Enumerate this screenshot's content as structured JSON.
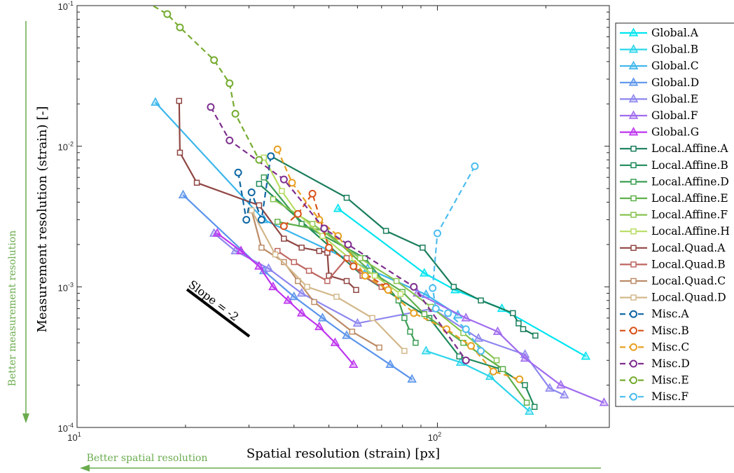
{
  "chart_data": {
    "type": "line",
    "title": "",
    "xlabel": "Spatial resolution (strain) [px]",
    "ylabel": "Measurement resolution (strain) [-]",
    "xscale": "log",
    "yscale": "log",
    "xlim": [
      10,
      300
    ],
    "ylim": [
      0.0001,
      0.1
    ],
    "x_ticks": [
      {
        "label_base": "10",
        "label_exp": "1"
      },
      {
        "label_base": "10",
        "label_exp": "2"
      }
    ],
    "y_ticks": [
      {
        "label_base": "10",
        "label_exp": "-4"
      },
      {
        "label_base": "10",
        "label_exp": "-3"
      },
      {
        "label_base": "10",
        "label_exp": "-2"
      },
      {
        "label_base": "10",
        "label_exp": "-1"
      }
    ],
    "grid": false,
    "legend_position": "right-outside",
    "annotations": {
      "slope_label": "Slope = -2",
      "better_measurement": "Better measurement resolution",
      "better_spatial": "Better spatial resolution"
    },
    "series": [
      {
        "name": "Global.A",
        "color": "#00e5f0",
        "marker": "triangle",
        "dash": false,
        "x": [
          53,
          92,
          112,
          151,
          258
        ],
        "y": [
          0.0036,
          0.00125,
          0.00095,
          0.0007,
          0.00032
        ]
      },
      {
        "name": "Global.B",
        "color": "#2bd5ea",
        "marker": "triangle",
        "dash": false,
        "x": [
          93,
          116,
          140,
          180
        ],
        "y": [
          0.00035,
          0.00029,
          0.00023,
          0.00013
        ]
      },
      {
        "name": "Global.C",
        "color": "#3ab5ec",
        "marker": "triangle",
        "dash": false,
        "x": [
          16.5,
          33,
          64,
          93,
          114
        ],
        "y": [
          0.0205,
          0.003,
          0.00135,
          0.00088,
          0.00063
        ]
      },
      {
        "name": "Global.D",
        "color": "#5b94eb",
        "marker": "triangle",
        "dash": false,
        "x": [
          19.7,
          33,
          40,
          48,
          56,
          74,
          85
        ],
        "y": [
          0.0045,
          0.0013,
          0.00085,
          0.0006,
          0.00045,
          0.00028,
          0.00022
        ]
      },
      {
        "name": "Global.E",
        "color": "#8d86ef",
        "marker": "triangle",
        "dash": false,
        "x": [
          24,
          27.5,
          34,
          42,
          60,
          97,
          130,
          175,
          205,
          225
        ],
        "y": [
          0.0024,
          0.0018,
          0.00135,
          0.0009,
          0.00055,
          0.0007,
          0.00043,
          0.00033,
          0.00019,
          0.00017
        ]
      },
      {
        "name": "Global.F",
        "color": "#a06bee",
        "marker": "triangle",
        "dash": false,
        "x": [
          88,
          120,
          147,
          175,
          220,
          290
        ],
        "y": [
          0.0009,
          0.0006,
          0.00048,
          0.00031,
          0.0002,
          0.00015
        ]
      },
      {
        "name": "Global.G",
        "color": "#bd35ee",
        "marker": "triangle",
        "dash": false,
        "x": [
          24.5,
          28.5,
          32,
          35,
          38.5,
          42,
          47,
          52,
          58.5
        ],
        "y": [
          0.0024,
          0.0018,
          0.0014,
          0.001,
          0.0008,
          0.00065,
          0.00052,
          0.0004,
          0.00028
        ]
      },
      {
        "name": "Local.Affine.A",
        "color": "#1a7e5a",
        "marker": "square",
        "dash": false,
        "x": [
          34.5,
          56,
          72,
          91,
          111,
          132,
          162,
          168,
          173,
          187
        ],
        "y": [
          0.0085,
          0.0043,
          0.0025,
          0.0019,
          0.001,
          0.0008,
          0.00065,
          0.00055,
          0.0005,
          0.00045
        ]
      },
      {
        "name": "Local.Affine.B",
        "color": "#1e8a5b",
        "marker": "square",
        "dash": false,
        "x": [
          32,
          62,
          95,
          115,
          150,
          175,
          186
        ],
        "y": [
          0.0054,
          0.0012,
          0.0006,
          0.00032,
          0.00026,
          0.0002,
          0.00014
        ]
      },
      {
        "name": "Local.Affine.D",
        "color": "#3c9e55",
        "marker": "square",
        "dash": false,
        "x": [
          33,
          42,
          63,
          78,
          81,
          84,
          87
        ],
        "y": [
          0.006,
          0.0028,
          0.0016,
          0.0008,
          0.0006,
          0.00048,
          0.0004
        ]
      },
      {
        "name": "Local.Affine.E",
        "color": "#5fb04c",
        "marker": "square",
        "dash": false,
        "x": [
          36,
          49,
          65,
          80,
          92,
          118,
          152,
          177
        ],
        "y": [
          0.0029,
          0.0025,
          0.0013,
          0.00092,
          0.00064,
          0.0004,
          0.00026,
          0.00015
        ]
      },
      {
        "name": "Local.Affine.F",
        "color": "#87c450",
        "marker": "square",
        "dash": false,
        "x": [
          35,
          45,
          61,
          77,
          96,
          118,
          146
        ],
        "y": [
          0.0042,
          0.0028,
          0.0016,
          0.0011,
          0.00072,
          0.00047,
          0.0003
        ]
      },
      {
        "name": "Local.Affine.H",
        "color": "#b8dc62",
        "marker": "square",
        "dash": false,
        "x": [
          33,
          37,
          41,
          48,
          57,
          67,
          79
        ],
        "y": [
          0.0083,
          0.0048,
          0.0033,
          0.0023,
          0.0016,
          0.0012,
          0.00089
        ]
      },
      {
        "name": "Local.Quad.A",
        "color": "#8f4643",
        "marker": "square",
        "dash": false,
        "x": [
          19.2,
          19.3,
          21.5,
          32,
          37.5,
          42,
          47,
          49.5,
          50,
          56,
          59.5
        ],
        "y": [
          0.021,
          0.009,
          0.0055,
          0.0038,
          0.0022,
          0.0019,
          0.0018,
          0.00175,
          0.0012,
          0.0011,
          0.00095
        ]
      },
      {
        "name": "Local.Quad.B",
        "color": "#bd6560",
        "marker": "square",
        "dash": false,
        "x": [
          36,
          40,
          44,
          49.5,
          56,
          62,
          70
        ],
        "y": [
          0.0018,
          0.0015,
          0.0013,
          0.0011,
          0.0016,
          0.0012,
          0.001
        ]
      },
      {
        "name": "Local.Quad.C",
        "color": "#bc8c68",
        "marker": "square",
        "dash": false,
        "x": [
          30.5,
          32.5,
          37.5,
          41,
          45.5,
          58,
          69
        ],
        "y": [
          0.0035,
          0.0019,
          0.0015,
          0.0011,
          0.00078,
          0.00048,
          0.00037
        ]
      },
      {
        "name": "Local.Quad.D",
        "color": "#d3b88b",
        "marker": "square",
        "dash": false,
        "x": [
          30.5,
          35.5,
          43.5,
          52.5,
          66,
          81
        ],
        "y": [
          0.0035,
          0.0017,
          0.001,
          0.00085,
          0.0006,
          0.00035
        ]
      },
      {
        "name": "Misc.A",
        "color": "#0e66a2",
        "marker": "circle",
        "dash": true,
        "x": [
          28,
          29.5,
          30.5,
          32.5,
          34.5
        ],
        "y": [
          0.0065,
          0.003,
          0.0047,
          0.003,
          0.0085
        ]
      },
      {
        "name": "Misc.B",
        "color": "#d9541c",
        "marker": "circle",
        "dash": true,
        "x": [
          37.5,
          41,
          45,
          50,
          58.5,
          72
        ],
        "y": [
          0.0027,
          0.0033,
          0.0046,
          0.0019,
          0.0014,
          0.001
        ]
      },
      {
        "name": "Misc.C",
        "color": "#e7a021",
        "marker": "circle",
        "dash": true,
        "x": [
          36,
          39.5,
          47,
          53,
          63,
          73,
          86,
          106,
          124,
          143,
          169
        ],
        "y": [
          0.0095,
          0.0055,
          0.003,
          0.0023,
          0.0012,
          0.00095,
          0.00065,
          0.0005,
          0.00038,
          0.00025,
          0.00022
        ]
      },
      {
        "name": "Misc.D",
        "color": "#7e2f8e",
        "marker": "circle",
        "dash": true,
        "x": [
          23.5,
          26.5,
          37.5,
          48.5,
          56.5,
          86,
          120
        ],
        "y": [
          0.019,
          0.011,
          0.0058,
          0.0026,
          0.002,
          0.001,
          0.0003
        ]
      },
      {
        "name": "Misc.E",
        "color": "#76ac30",
        "marker": "circle",
        "dash": true,
        "x": [
          15.5,
          17.8,
          19.3,
          24,
          26.5,
          27.5,
          32
        ],
        "y": [
          0.107,
          0.087,
          0.07,
          0.041,
          0.028,
          0.017,
          0.008
        ]
      },
      {
        "name": "Misc.F",
        "color": "#4dbdee",
        "marker": "circle",
        "dash": true,
        "x": [
          127,
          100,
          97,
          99,
          107,
          120,
          132
        ],
        "y": [
          0.0072,
          0.0024,
          0.00098,
          0.0007,
          0.00065,
          0.0005,
          0.00035
        ]
      }
    ]
  }
}
